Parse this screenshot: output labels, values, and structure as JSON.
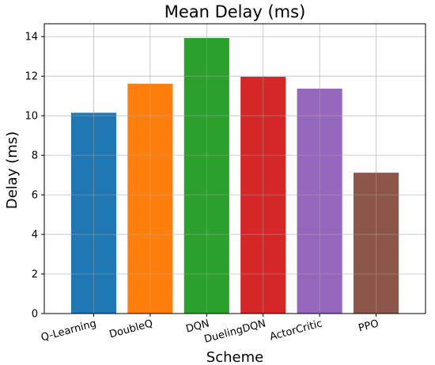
{
  "chart_data": {
    "type": "bar",
    "title": "Mean Delay (ms)",
    "xlabel": "Scheme",
    "ylabel": "Delay (ms)",
    "categories": [
      "Q-Learning",
      "DoubleQ",
      "DQN",
      "DuelingDQN",
      "ActorCritic",
      "PPO"
    ],
    "values": [
      10.15,
      11.62,
      13.93,
      11.97,
      11.37,
      7.12
    ],
    "colors": [
      "#1f77b4",
      "#ff7f0e",
      "#2ca02c",
      "#d62728",
      "#9467bd",
      "#8c564b"
    ],
    "ylim": [
      0,
      14.65
    ],
    "yticks": [
      0,
      2,
      4,
      6,
      8,
      10,
      12,
      14
    ],
    "grid": true,
    "xtick_rotation": 15
  }
}
